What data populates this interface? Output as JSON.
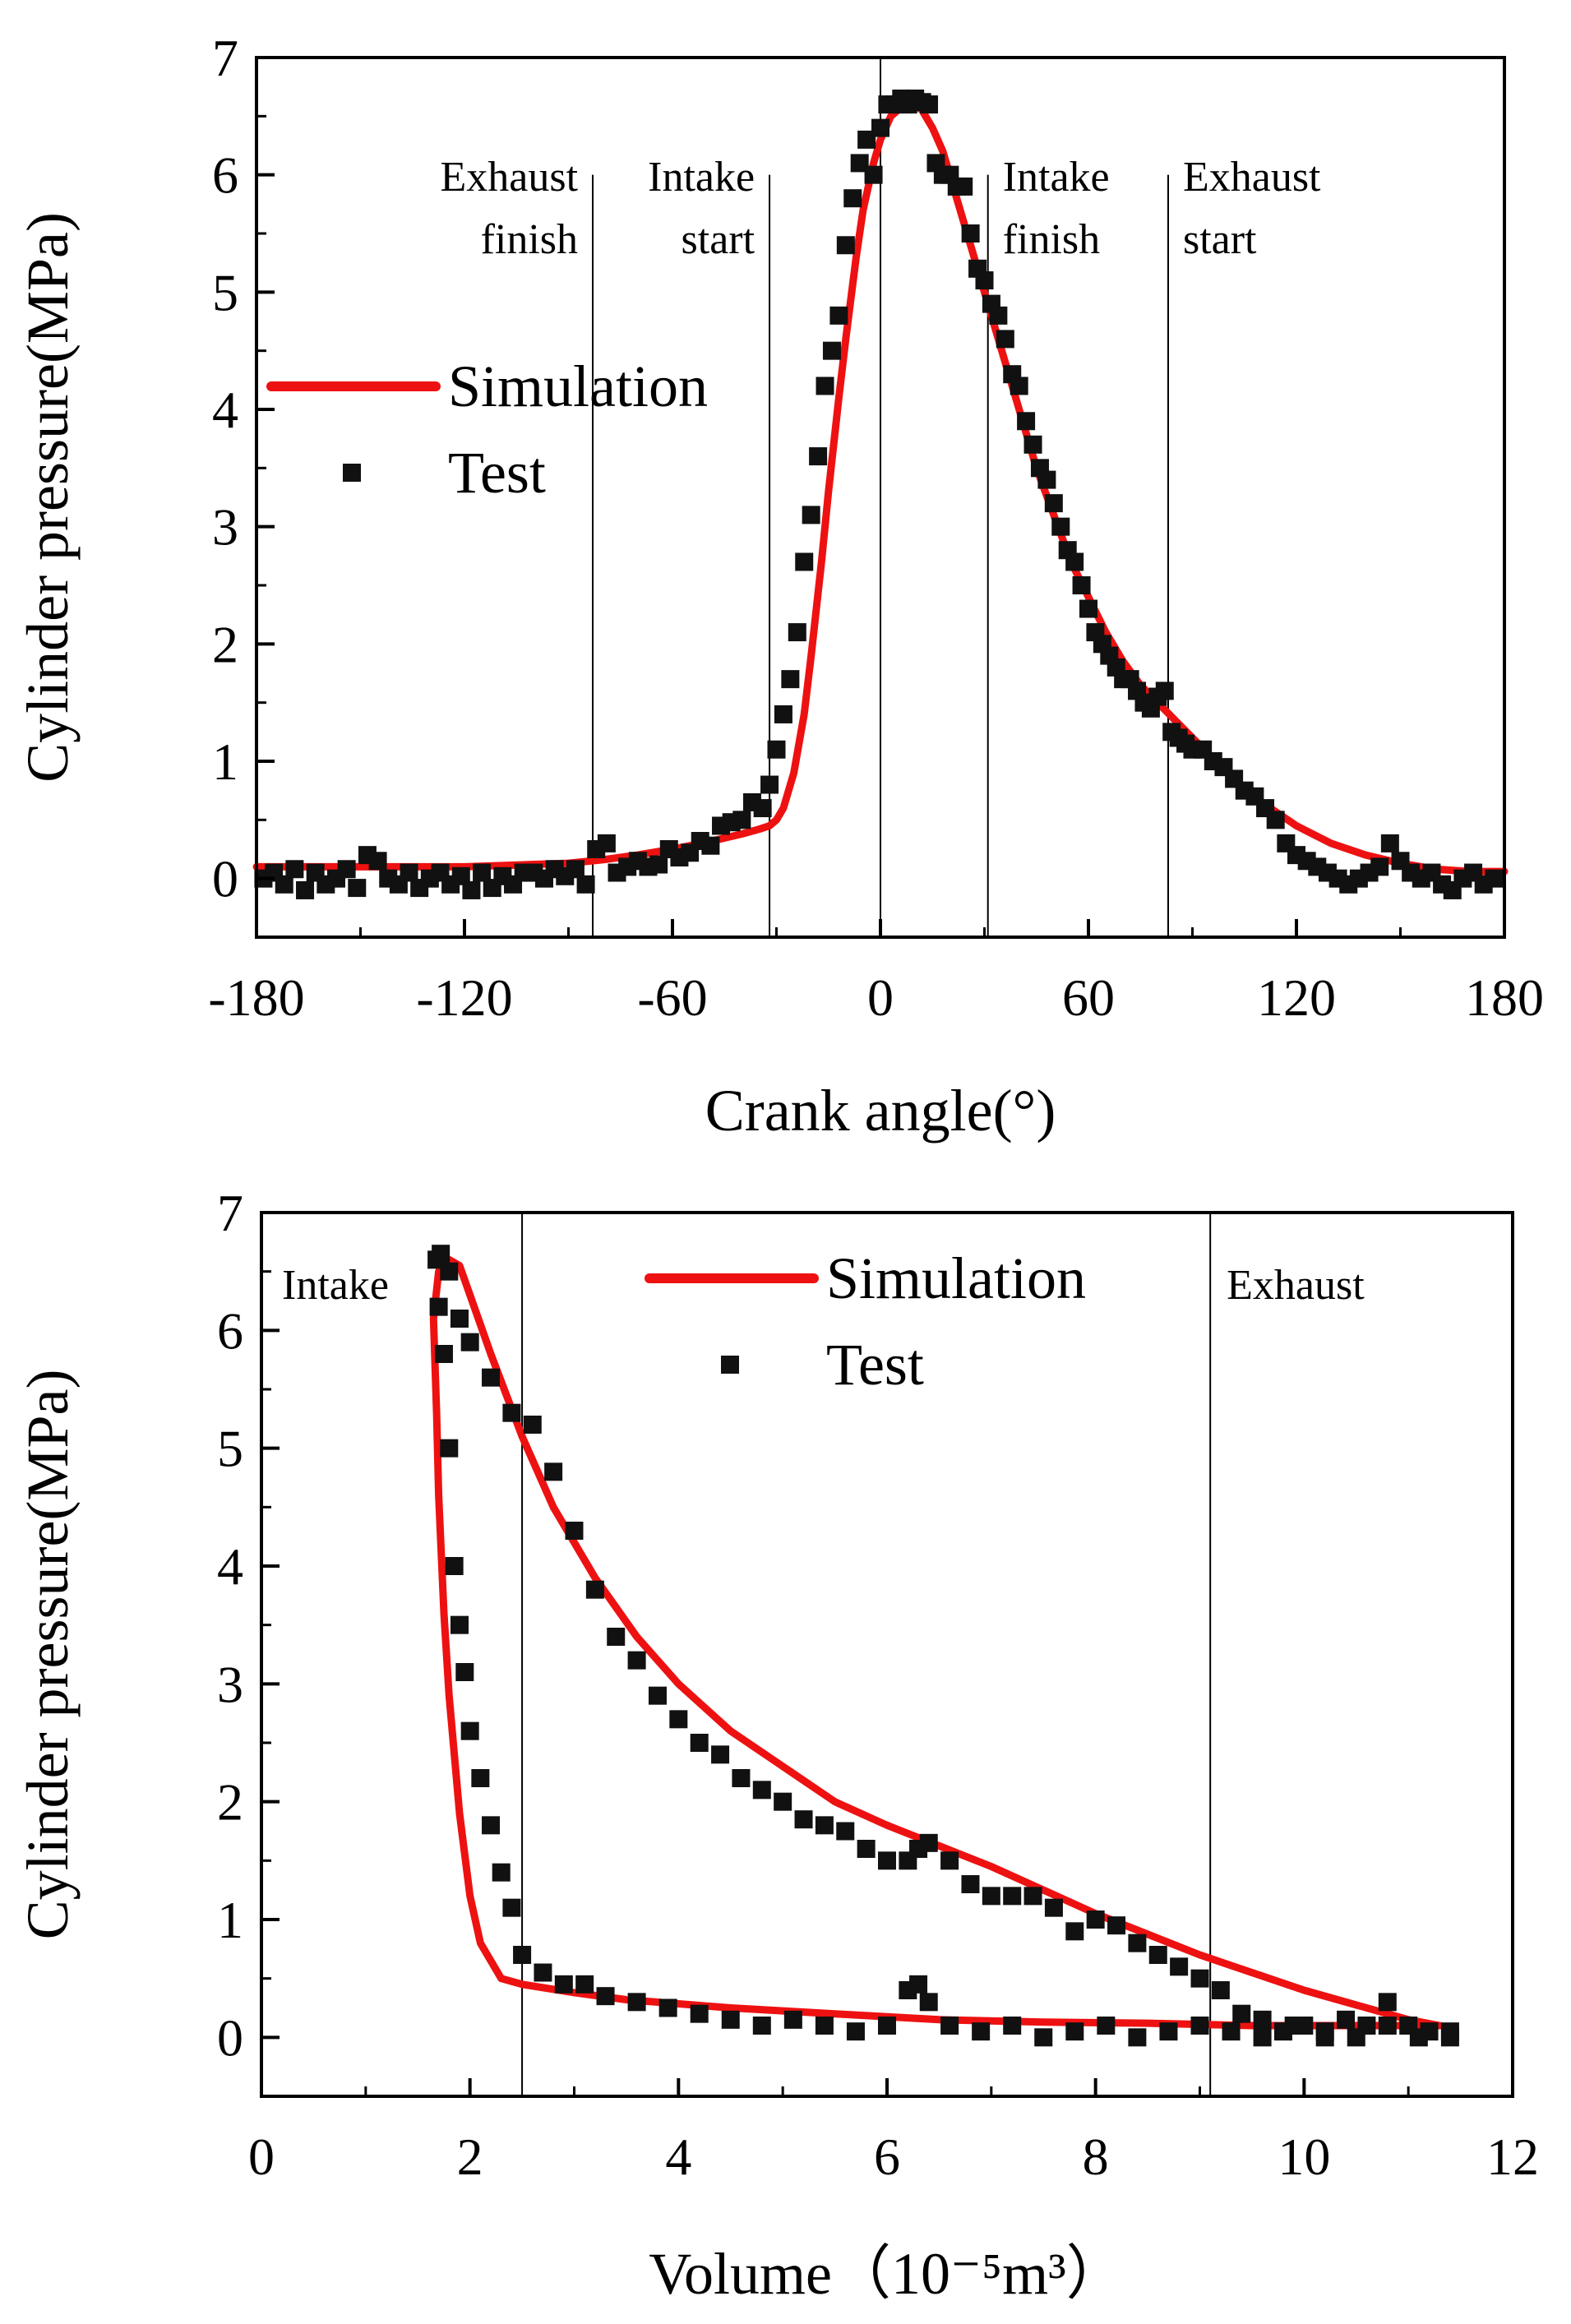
{
  "chart_data": [
    {
      "type": "line",
      "xlabel": "Crank angle(°)",
      "ylabel": "Cylinder pressure(MPa)",
      "xlim": [
        -180,
        180
      ],
      "ylim": [
        -0.5,
        7
      ],
      "xticks": [
        -180,
        -120,
        -60,
        0,
        60,
        120,
        180
      ],
      "yticks": [
        0,
        1,
        2,
        3,
        4,
        5,
        6,
        7
      ],
      "legend": "center-left",
      "grid": false,
      "series": [
        {
          "name": "Simulation",
          "style": "line",
          "color": "#ee1111",
          "x": [
            -180,
            -150,
            -120,
            -100,
            -90,
            -80,
            -70,
            -60,
            -50,
            -40,
            -35,
            -32,
            -30,
            -28,
            -25,
            -22,
            -20,
            -17,
            -15,
            -12,
            -10,
            -7,
            -5,
            -2,
            0,
            3,
            5,
            8,
            10,
            12,
            15,
            18,
            20,
            25,
            30,
            35,
            40,
            45,
            50,
            55,
            60,
            65,
            70,
            75,
            80,
            85,
            90,
            95,
            100,
            110,
            120,
            130,
            140,
            150,
            160,
            170,
            180
          ],
          "y": [
            0.1,
            0.1,
            0.1,
            0.12,
            0.13,
            0.16,
            0.2,
            0.25,
            0.31,
            0.38,
            0.42,
            0.45,
            0.5,
            0.6,
            0.9,
            1.4,
            1.9,
            2.7,
            3.3,
            4.1,
            4.6,
            5.3,
            5.7,
            6.1,
            6.3,
            6.5,
            6.55,
            6.6,
            6.6,
            6.55,
            6.4,
            6.2,
            6.0,
            5.5,
            5.0,
            4.5,
            4.0,
            3.5,
            3.1,
            2.7,
            2.4,
            2.1,
            1.85,
            1.65,
            1.5,
            1.35,
            1.2,
            1.05,
            0.9,
            0.65,
            0.45,
            0.3,
            0.2,
            0.13,
            0.08,
            0.06,
            0.06
          ]
        },
        {
          "name": "Test",
          "style": "markers",
          "marker": "square",
          "color": "#111111",
          "x": [
            -178,
            -175,
            -172,
            -169,
            -166,
            -163,
            -160,
            -157,
            -154,
            -151,
            -148,
            -145,
            -142,
            -139,
            -136,
            -133,
            -130,
            -127,
            -124,
            -121,
            -118,
            -115,
            -112,
            -109,
            -106,
            -103,
            -100,
            -97,
            -94,
            -91,
            -88,
            -85,
            -82,
            -79,
            -76,
            -73,
            -70,
            -67,
            -64,
            -61,
            -58,
            -55,
            -52,
            -49,
            -46,
            -43,
            -40,
            -37,
            -34,
            -32,
            -30,
            -28,
            -26,
            -24,
            -22,
            -20,
            -18,
            -16,
            -14,
            -12,
            -10,
            -8,
            -6,
            -4,
            -2,
            0,
            2,
            4,
            6,
            8,
            10,
            12,
            14,
            16,
            18,
            20,
            22,
            24,
            26,
            28,
            30,
            32,
            34,
            36,
            38,
            40,
            42,
            44,
            46,
            48,
            50,
            52,
            54,
            56,
            58,
            60,
            62,
            64,
            66,
            68,
            70,
            72,
            74,
            76,
            78,
            80,
            82,
            84,
            86,
            88,
            90,
            93,
            96,
            99,
            102,
            105,
            108,
            111,
            114,
            117,
            120,
            123,
            126,
            129,
            132,
            135,
            138,
            141,
            144,
            147,
            150,
            153,
            156,
            159,
            162,
            165,
            168,
            171,
            174,
            177
          ],
          "y": [
            0.0,
            0.05,
            -0.05,
            0.08,
            -0.1,
            0.05,
            -0.05,
            0.0,
            0.08,
            -0.08,
            0.2,
            0.15,
            0.0,
            -0.05,
            0.05,
            -0.08,
            0.0,
            0.05,
            -0.05,
            0.02,
            -0.1,
            0.05,
            -0.08,
            0.02,
            -0.05,
            0.05,
            0.05,
            0.0,
            0.08,
            0.02,
            0.08,
            -0.05,
            0.25,
            0.3,
            0.05,
            0.1,
            0.15,
            0.1,
            0.12,
            0.25,
            0.18,
            0.22,
            0.32,
            0.28,
            0.45,
            0.48,
            0.5,
            0.65,
            0.6,
            0.8,
            1.1,
            1.4,
            1.7,
            2.1,
            2.7,
            3.1,
            3.6,
            4.2,
            4.5,
            4.8,
            5.4,
            5.8,
            6.1,
            6.3,
            6.0,
            6.4,
            6.6,
            6.6,
            6.65,
            6.6,
            6.65,
            6.62,
            6.6,
            6.1,
            6.0,
            6.0,
            5.9,
            5.9,
            5.5,
            5.2,
            5.1,
            4.9,
            4.8,
            4.6,
            4.3,
            4.2,
            3.9,
            3.7,
            3.5,
            3.4,
            3.2,
            3.0,
            2.8,
            2.7,
            2.5,
            2.3,
            2.1,
            2.0,
            1.9,
            1.8,
            1.7,
            1.7,
            1.6,
            1.5,
            1.45,
            1.55,
            1.6,
            1.25,
            1.2,
            1.15,
            1.1,
            1.1,
            1.0,
            0.95,
            0.85,
            0.75,
            0.7,
            0.6,
            0.5,
            0.3,
            0.2,
            0.15,
            0.1,
            0.05,
            0.0,
            -0.05,
            0.0,
            0.05,
            0.1,
            0.3,
            0.15,
            0.05,
            0.0,
            0.05,
            -0.05,
            -0.1,
            0.0,
            0.05,
            -0.05,
            0.0
          ]
        }
      ],
      "vlines": [
        {
          "x": -83,
          "label": [
            "Exhaust",
            "finish"
          ]
        },
        {
          "x": -32,
          "label": [
            "Intake",
            "start"
          ]
        },
        {
          "x": 0,
          "label": []
        },
        {
          "x": 31,
          "label": [
            "Intake",
            "finish"
          ]
        },
        {
          "x": 83,
          "label": [
            "Exhaust",
            "start"
          ]
        }
      ]
    },
    {
      "type": "line",
      "xlabel": "Volume（10⁻⁵m³）",
      "ylabel": "Cylinder pressure(MPa)",
      "xlim": [
        0,
        12
      ],
      "ylim": [
        -0.5,
        7
      ],
      "xticks": [
        0,
        2,
        4,
        6,
        8,
        10,
        12
      ],
      "yticks": [
        0,
        1,
        2,
        3,
        4,
        5,
        6,
        7
      ],
      "legend": "top-center",
      "grid": false,
      "series": [
        {
          "name": "Simulation",
          "style": "line",
          "color": "#ee1111",
          "x": [
            11.3,
            10.5,
            9.5,
            8.5,
            7.5,
            6.5,
            5.5,
            4.5,
            3.5,
            3.0,
            2.5,
            2.3,
            2.1,
            2.0,
            1.9,
            1.8,
            1.75,
            1.7,
            1.68,
            1.65,
            1.7,
            1.8,
            1.9,
            2.0,
            2.2,
            2.5,
            2.8,
            3.2,
            3.6,
            4.0,
            4.5,
            5.0,
            5.5,
            6.0,
            7.0,
            8.0,
            9.0,
            10.0,
            11.0,
            11.3
          ],
          "y": [
            0.1,
            0.1,
            0.1,
            0.12,
            0.13,
            0.15,
            0.2,
            0.25,
            0.32,
            0.38,
            0.45,
            0.5,
            0.8,
            1.2,
            1.9,
            2.9,
            3.6,
            4.6,
            5.3,
            6.1,
            6.5,
            6.6,
            6.55,
            6.3,
            5.8,
            5.1,
            4.5,
            3.9,
            3.4,
            3.0,
            2.6,
            2.3,
            2.0,
            1.8,
            1.45,
            1.05,
            0.7,
            0.4,
            0.15,
            0.1
          ]
        },
        {
          "name": "Test",
          "style": "markers",
          "marker": "square",
          "color": "#111111",
          "x": [
            11.4,
            11.2,
            11.0,
            10.8,
            10.6,
            10.4,
            10.2,
            10.0,
            9.8,
            9.6,
            9.4,
            9.2,
            9.0,
            8.8,
            8.6,
            8.4,
            8.2,
            8.0,
            7.8,
            7.6,
            7.4,
            7.2,
            7.0,
            6.8,
            6.6,
            6.4,
            6.3,
            6.2,
            6.0,
            5.8,
            5.6,
            5.4,
            5.2,
            5.0,
            4.8,
            4.6,
            4.4,
            4.2,
            4.0,
            3.8,
            3.6,
            3.4,
            3.2,
            3.0,
            2.8,
            2.6,
            2.4,
            2.2,
            2.0,
            1.9,
            1.8,
            1.72,
            1.68,
            1.7,
            1.75,
            1.8,
            1.85,
            1.9,
            1.95,
            2.0,
            2.1,
            2.2,
            2.3,
            2.4,
            2.5,
            2.7,
            2.9,
            3.1,
            3.3,
            3.6,
            3.9,
            4.2,
            4.5,
            4.8,
            5.1,
            5.4,
            5.7,
            6.0,
            6.2,
            6.3,
            6.4,
            6.6,
            6.9,
            7.2,
            7.5,
            7.8,
            8.1,
            8.4,
            8.7,
            9.0,
            9.3,
            9.6,
            9.9,
            10.2,
            10.5,
            10.8,
            11.1,
            11.4
          ],
          "y": [
            0.0,
            0.05,
            0.1,
            0.3,
            0.1,
            0.15,
            0.0,
            0.1,
            0.05,
            0.15,
            0.2,
            0.4,
            0.5,
            0.6,
            0.7,
            0.8,
            0.95,
            1.0,
            0.9,
            1.1,
            1.2,
            1.2,
            1.2,
            1.3,
            1.5,
            1.65,
            1.6,
            1.5,
            1.5,
            1.6,
            1.75,
            1.8,
            1.85,
            2.0,
            2.1,
            2.2,
            2.4,
            2.5,
            2.7,
            2.9,
            3.2,
            3.4,
            3.8,
            4.3,
            4.8,
            5.2,
            5.3,
            5.6,
            5.9,
            6.1,
            6.5,
            6.65,
            6.6,
            6.2,
            5.8,
            5.0,
            4.0,
            3.5,
            3.1,
            2.6,
            2.2,
            1.8,
            1.4,
            1.1,
            0.7,
            0.55,
            0.45,
            0.45,
            0.35,
            0.3,
            0.25,
            0.2,
            0.15,
            0.1,
            0.15,
            0.1,
            0.05,
            0.1,
            0.4,
            0.45,
            0.3,
            0.1,
            0.05,
            0.1,
            0.0,
            0.05,
            0.1,
            0.0,
            0.05,
            0.1,
            0.05,
            0.0,
            0.1,
            0.05,
            0.0,
            0.1,
            0.0,
            0.05
          ]
        }
      ],
      "vlines": [
        {
          "x": 2.5,
          "label": [
            "Intake"
          ],
          "label_side": "left"
        },
        {
          "x": 9.1,
          "label": [
            "Exhaust"
          ],
          "label_side": "right"
        }
      ]
    }
  ]
}
